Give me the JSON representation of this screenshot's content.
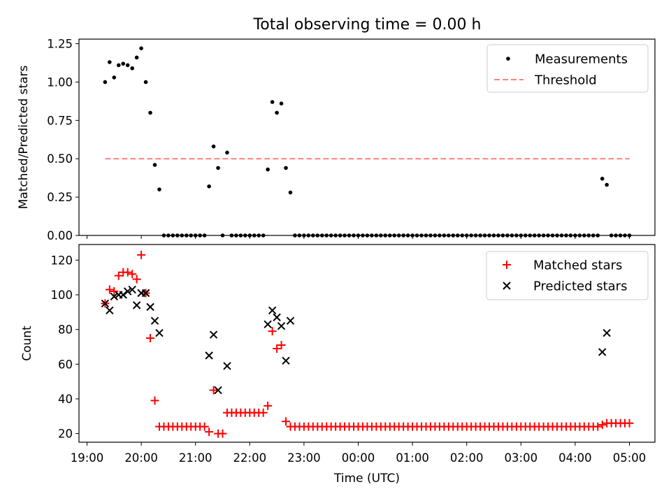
{
  "chart_data": [
    {
      "type": "scatter",
      "title": "Total observing time = 0.00 h",
      "xlabel": "",
      "ylabel": "Matched/Predicted stars",
      "ylim": [
        0,
        1.28
      ],
      "yticks": [
        "0.00",
        "0.25",
        "0.50",
        "0.75",
        "1.00",
        "1.25"
      ],
      "legend": {
        "placement": "top-right",
        "entries": [
          "Measurements",
          "Threshold"
        ]
      },
      "colors": {
        "measurements": "#000000",
        "threshold": "#ff7f7f"
      },
      "threshold": {
        "value": 0.5,
        "x_start": "19:20",
        "x_end": "05:00"
      },
      "series": [
        {
          "name": "Measurements",
          "points": [
            [
              "19:20",
              1.0
            ],
            [
              "19:25",
              1.13
            ],
            [
              "19:30",
              1.03
            ],
            [
              "19:35",
              1.11
            ],
            [
              "19:40",
              1.12
            ],
            [
              "19:45",
              1.11
            ],
            [
              "19:50",
              1.09
            ],
            [
              "19:55",
              1.16
            ],
            [
              "20:00",
              1.22
            ],
            [
              "20:05",
              1.0
            ],
            [
              "20:10",
              0.8
            ],
            [
              "20:15",
              0.46
            ],
            [
              "20:20",
              0.3
            ],
            [
              "20:25",
              0.0
            ],
            [
              "20:30",
              0.0
            ],
            [
              "20:35",
              0.0
            ],
            [
              "20:40",
              0.0
            ],
            [
              "20:45",
              0.0
            ],
            [
              "20:50",
              0.0
            ],
            [
              "20:55",
              0.0
            ],
            [
              "21:00",
              0.0
            ],
            [
              "21:05",
              0.0
            ],
            [
              "21:10",
              0.0
            ],
            [
              "21:15",
              0.32
            ],
            [
              "21:20",
              0.58
            ],
            [
              "21:25",
              0.44
            ],
            [
              "21:30",
              0.0
            ],
            [
              "21:35",
              0.54
            ],
            [
              "21:40",
              0.0
            ],
            [
              "21:45",
              0.0
            ],
            [
              "21:50",
              0.0
            ],
            [
              "21:55",
              0.0
            ],
            [
              "22:00",
              0.0
            ],
            [
              "22:05",
              0.0
            ],
            [
              "22:10",
              0.0
            ],
            [
              "22:15",
              0.0
            ],
            [
              "22:20",
              0.43
            ],
            [
              "22:25",
              0.87
            ],
            [
              "22:30",
              0.8
            ],
            [
              "22:35",
              0.86
            ],
            [
              "22:40",
              0.44
            ],
            [
              "22:45",
              0.28
            ],
            [
              "22:50",
              0.0
            ],
            [
              "22:55",
              0.0
            ],
            [
              "23:00",
              0.0
            ],
            [
              "23:05",
              0.0
            ],
            [
              "23:10",
              0.0
            ],
            [
              "23:15",
              0.0
            ],
            [
              "23:20",
              0.0
            ],
            [
              "23:25",
              0.0
            ],
            [
              "23:30",
              0.0
            ],
            [
              "23:35",
              0.0
            ],
            [
              "23:40",
              0.0
            ],
            [
              "23:45",
              0.0
            ],
            [
              "23:50",
              0.0
            ],
            [
              "23:55",
              0.0
            ],
            [
              "00:00",
              0.0
            ],
            [
              "00:05",
              0.0
            ],
            [
              "00:10",
              0.0
            ],
            [
              "00:15",
              0.0
            ],
            [
              "00:20",
              0.0
            ],
            [
              "00:25",
              0.0
            ],
            [
              "00:30",
              0.0
            ],
            [
              "00:35",
              0.0
            ],
            [
              "00:40",
              0.0
            ],
            [
              "00:45",
              0.0
            ],
            [
              "00:50",
              0.0
            ],
            [
              "00:55",
              0.0
            ],
            [
              "01:00",
              0.0
            ],
            [
              "01:05",
              0.0
            ],
            [
              "01:10",
              0.0
            ],
            [
              "01:15",
              0.0
            ],
            [
              "01:20",
              0.0
            ],
            [
              "01:25",
              0.0
            ],
            [
              "01:30",
              0.0
            ],
            [
              "01:35",
              0.0
            ],
            [
              "01:40",
              0.0
            ],
            [
              "01:45",
              0.0
            ],
            [
              "01:50",
              0.0
            ],
            [
              "01:55",
              0.0
            ],
            [
              "02:00",
              0.0
            ],
            [
              "02:05",
              0.0
            ],
            [
              "02:10",
              0.0
            ],
            [
              "02:15",
              0.0
            ],
            [
              "02:20",
              0.0
            ],
            [
              "02:25",
              0.0
            ],
            [
              "02:30",
              0.0
            ],
            [
              "02:35",
              0.0
            ],
            [
              "02:40",
              0.0
            ],
            [
              "02:45",
              0.0
            ],
            [
              "02:50",
              0.0
            ],
            [
              "02:55",
              0.0
            ],
            [
              "03:00",
              0.0
            ],
            [
              "03:05",
              0.0
            ],
            [
              "03:10",
              0.0
            ],
            [
              "03:15",
              0.0
            ],
            [
              "03:20",
              0.0
            ],
            [
              "03:25",
              0.0
            ],
            [
              "03:30",
              0.0
            ],
            [
              "03:35",
              0.0
            ],
            [
              "03:40",
              0.0
            ],
            [
              "03:45",
              0.0
            ],
            [
              "03:50",
              0.0
            ],
            [
              "03:55",
              0.0
            ],
            [
              "04:00",
              0.0
            ],
            [
              "04:05",
              0.0
            ],
            [
              "04:10",
              0.0
            ],
            [
              "04:15",
              0.0
            ],
            [
              "04:20",
              0.0
            ],
            [
              "04:25",
              0.0
            ],
            [
              "04:30",
              0.37
            ],
            [
              "04:35",
              0.33
            ],
            [
              "04:40",
              0.0
            ],
            [
              "04:45",
              0.0
            ],
            [
              "04:50",
              0.0
            ],
            [
              "04:55",
              0.0
            ],
            [
              "05:00",
              0.0
            ]
          ]
        }
      ]
    },
    {
      "type": "scatter",
      "title": "",
      "xlabel": "Time (UTC)",
      "ylabel": "Count",
      "ylim": [
        15,
        129
      ],
      "yticks": [
        "20",
        "40",
        "60",
        "80",
        "100",
        "120"
      ],
      "xticks": [
        "19:00",
        "20:00",
        "21:00",
        "22:00",
        "23:00",
        "00:00",
        "01:00",
        "02:00",
        "03:00",
        "04:00",
        "05:00"
      ],
      "legend": {
        "placement": "top-right",
        "entries": [
          "Matched stars",
          "Predicted stars"
        ]
      },
      "colors": {
        "matched": "#ff0000",
        "predicted": "#000000"
      },
      "series": [
        {
          "name": "Matched stars",
          "marker": "plus",
          "points": [
            [
              "19:20",
              95
            ],
            [
              "19:25",
              103
            ],
            [
              "19:30",
              102
            ],
            [
              "19:35",
              111
            ],
            [
              "19:40",
              113
            ],
            [
              "19:45",
              113
            ],
            [
              "19:50",
              112
            ],
            [
              "19:55",
              109
            ],
            [
              "20:00",
              123
            ],
            [
              "20:05",
              101
            ],
            [
              "20:10",
              75
            ],
            [
              "20:15",
              39
            ],
            [
              "20:20",
              24
            ],
            [
              "20:25",
              24
            ],
            [
              "20:30",
              24
            ],
            [
              "20:35",
              24
            ],
            [
              "20:40",
              24
            ],
            [
              "20:45",
              24
            ],
            [
              "20:50",
              24
            ],
            [
              "20:55",
              24
            ],
            [
              "21:00",
              24
            ],
            [
              "21:05",
              24
            ],
            [
              "21:10",
              24
            ],
            [
              "21:15",
              21
            ],
            [
              "21:20",
              45
            ],
            [
              "21:25",
              20
            ],
            [
              "21:30",
              20
            ],
            [
              "21:35",
              32
            ],
            [
              "21:40",
              32
            ],
            [
              "21:45",
              32
            ],
            [
              "21:50",
              32
            ],
            [
              "21:55",
              32
            ],
            [
              "22:00",
              32
            ],
            [
              "22:05",
              32
            ],
            [
              "22:10",
              32
            ],
            [
              "22:15",
              32
            ],
            [
              "22:20",
              36
            ],
            [
              "22:25",
              79
            ],
            [
              "22:30",
              69
            ],
            [
              "22:35",
              71
            ],
            [
              "22:40",
              27
            ],
            [
              "22:45",
              24
            ],
            [
              "22:50",
              24
            ],
            [
              "22:55",
              24
            ],
            [
              "23:00",
              24
            ],
            [
              "23:05",
              24
            ],
            [
              "23:10",
              24
            ],
            [
              "23:15",
              24
            ],
            [
              "23:20",
              24
            ],
            [
              "23:25",
              24
            ],
            [
              "23:30",
              24
            ],
            [
              "23:35",
              24
            ],
            [
              "23:40",
              24
            ],
            [
              "23:45",
              24
            ],
            [
              "23:50",
              24
            ],
            [
              "23:55",
              24
            ],
            [
              "00:00",
              24
            ],
            [
              "00:05",
              24
            ],
            [
              "00:10",
              24
            ],
            [
              "00:15",
              24
            ],
            [
              "00:20",
              24
            ],
            [
              "00:25",
              24
            ],
            [
              "00:30",
              24
            ],
            [
              "00:35",
              24
            ],
            [
              "00:40",
              24
            ],
            [
              "00:45",
              24
            ],
            [
              "00:50",
              24
            ],
            [
              "00:55",
              24
            ],
            [
              "01:00",
              24
            ],
            [
              "01:05",
              24
            ],
            [
              "01:10",
              24
            ],
            [
              "01:15",
              24
            ],
            [
              "01:20",
              24
            ],
            [
              "01:25",
              24
            ],
            [
              "01:30",
              24
            ],
            [
              "01:35",
              24
            ],
            [
              "01:40",
              24
            ],
            [
              "01:45",
              24
            ],
            [
              "01:50",
              24
            ],
            [
              "01:55",
              24
            ],
            [
              "02:00",
              24
            ],
            [
              "02:05",
              24
            ],
            [
              "02:10",
              24
            ],
            [
              "02:15",
              24
            ],
            [
              "02:20",
              24
            ],
            [
              "02:25",
              24
            ],
            [
              "02:30",
              24
            ],
            [
              "02:35",
              24
            ],
            [
              "02:40",
              24
            ],
            [
              "02:45",
              24
            ],
            [
              "02:50",
              24
            ],
            [
              "02:55",
              24
            ],
            [
              "03:00",
              24
            ],
            [
              "03:05",
              24
            ],
            [
              "03:10",
              24
            ],
            [
              "03:15",
              24
            ],
            [
              "03:20",
              24
            ],
            [
              "03:25",
              24
            ],
            [
              "03:30",
              24
            ],
            [
              "03:35",
              24
            ],
            [
              "03:40",
              24
            ],
            [
              "03:45",
              24
            ],
            [
              "03:50",
              24
            ],
            [
              "03:55",
              24
            ],
            [
              "04:00",
              24
            ],
            [
              "04:05",
              24
            ],
            [
              "04:10",
              24
            ],
            [
              "04:15",
              24
            ],
            [
              "04:20",
              24
            ],
            [
              "04:25",
              24
            ],
            [
              "04:30",
              25
            ],
            [
              "04:35",
              26
            ],
            [
              "04:40",
              26
            ],
            [
              "04:45",
              26
            ],
            [
              "04:50",
              26
            ],
            [
              "04:55",
              26
            ],
            [
              "05:00",
              26
            ]
          ]
        },
        {
          "name": "Predicted stars",
          "marker": "x",
          "points": [
            [
              "19:20",
              95
            ],
            [
              "19:25",
              91
            ],
            [
              "19:30",
              99
            ],
            [
              "19:35",
              100
            ],
            [
              "19:40",
              100
            ],
            [
              "19:45",
              102
            ],
            [
              "19:50",
              103
            ],
            [
              "19:55",
              94
            ],
            [
              "20:00",
              101
            ],
            [
              "20:05",
              101
            ],
            [
              "20:10",
              93
            ],
            [
              "20:15",
              85
            ],
            [
              "20:20",
              78
            ],
            [
              "21:15",
              65
            ],
            [
              "21:20",
              77
            ],
            [
              "21:25",
              45
            ],
            [
              "21:35",
              59
            ],
            [
              "22:20",
              83
            ],
            [
              "22:25",
              91
            ],
            [
              "22:30",
              87
            ],
            [
              "22:35",
              82
            ],
            [
              "22:40",
              62
            ],
            [
              "22:45",
              85
            ],
            [
              "04:30",
              67
            ],
            [
              "04:35",
              78
            ]
          ]
        }
      ]
    }
  ]
}
